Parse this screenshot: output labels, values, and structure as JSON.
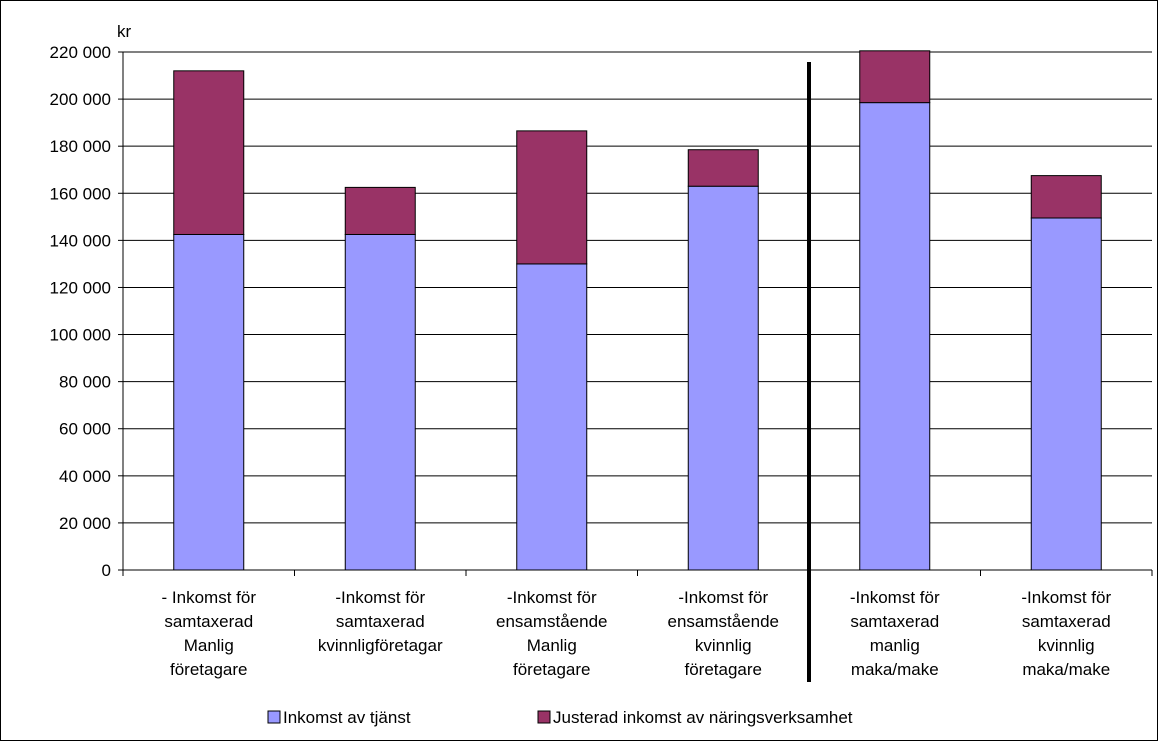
{
  "chart_data": {
    "type": "bar",
    "stacked": true,
    "unit_label": "kr",
    "ylim": [
      0,
      220000
    ],
    "y_ticks": [
      "0",
      "20 000",
      "40 000",
      "60 000",
      "80 000",
      "100 000",
      "120 000",
      "140 000",
      "160 000",
      "180 000",
      "200 000",
      "220 000"
    ],
    "y_tick_values": [
      0,
      20000,
      40000,
      60000,
      80000,
      100000,
      120000,
      140000,
      160000,
      180000,
      200000,
      220000
    ],
    "grid": true,
    "legend_position": "bottom",
    "categories": [
      [
        "- Inkomst för",
        "samtaxerad",
        "Manlig",
        "företagare"
      ],
      [
        "-Inkomst för",
        "samtaxerad",
        "kvinnligföretagar"
      ],
      [
        "-Inkomst för",
        "ensamstående",
        "Manlig",
        "företagare"
      ],
      [
        "-Inkomst för",
        "ensamstående",
        "kvinnlig",
        "företagare"
      ],
      [
        "-Inkomst för",
        "samtaxerad",
        "manlig",
        "maka/make"
      ],
      [
        "-Inkomst för",
        "samtaxerad",
        "kvinnlig",
        "maka/make"
      ]
    ],
    "series": [
      {
        "name": "Inkomst  av tjänst",
        "color": "#9999ff",
        "values": [
          142500,
          142500,
          130000,
          163000,
          198500,
          149500
        ]
      },
      {
        "name": "Justerad inkomst av näringsverksamhet",
        "color": "#993366",
        "values": [
          69500,
          20000,
          56500,
          15500,
          22000,
          18000
        ]
      }
    ],
    "separator_after_category": 3
  }
}
